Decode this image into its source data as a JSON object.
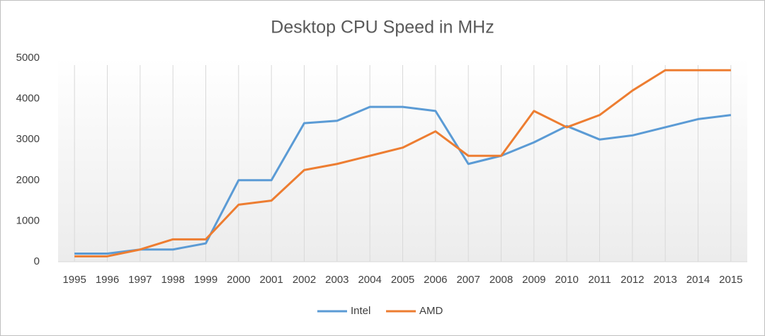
{
  "chart_data": {
    "type": "line",
    "title": "Desktop CPU Speed in MHz",
    "categories": [
      "1995",
      "1996",
      "1997",
      "1998",
      "1999",
      "2000",
      "2001",
      "2002",
      "2003",
      "2004",
      "2005",
      "2006",
      "2007",
      "2008",
      "2009",
      "2010",
      "2011",
      "2012",
      "2013",
      "2014",
      "2015"
    ],
    "series": [
      {
        "name": "Intel",
        "color": "#5b9bd5",
        "values": [
          200,
          200,
          300,
          300,
          450,
          2000,
          2000,
          3400,
          3460,
          3800,
          3800,
          3700,
          2400,
          2600,
          2930,
          3330,
          3000,
          3100,
          3300,
          3500,
          3600
        ]
      },
      {
        "name": "AMD",
        "color": "#ed7d31",
        "values": [
          133,
          133,
          300,
          550,
          550,
          1400,
          1500,
          2250,
          2400,
          2600,
          2800,
          3200,
          2600,
          2600,
          3700,
          3300,
          3600,
          4200,
          4700,
          4700,
          4700
        ]
      }
    ],
    "ylim": [
      0,
      5000
    ],
    "yticks": [
      0,
      1000,
      2000,
      3000,
      4000,
      5000
    ],
    "grid": true,
    "legend": "bottom"
  }
}
